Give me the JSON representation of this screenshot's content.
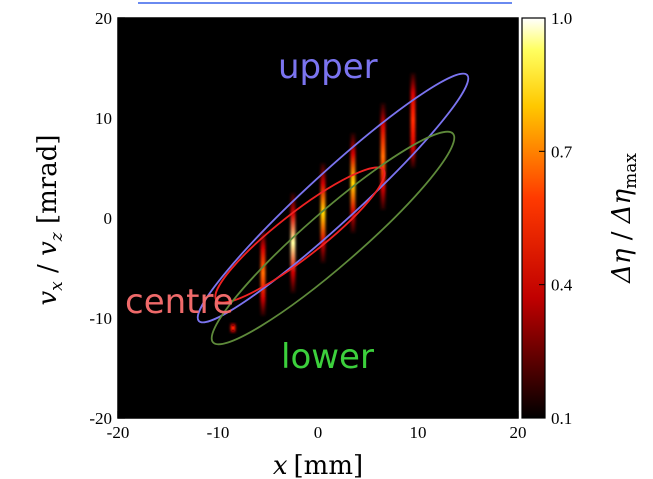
{
  "chart_data": {
    "type": "heatmap",
    "title": "",
    "xlabel": {
      "var": "x",
      "unit": "[mm]"
    },
    "ylabel": {
      "var1": "v",
      "sub1": "x",
      "sep": " / ",
      "var2": "v",
      "sub2": "z",
      "unit": " [mrad]"
    },
    "xlim": [
      -20,
      20
    ],
    "ylim": [
      -20,
      20
    ],
    "x_ticks": [
      -20,
      -10,
      0,
      10,
      20
    ],
    "y_ticks": [
      -20,
      -10,
      0,
      10,
      20
    ],
    "grid": false,
    "background_color": "#000000",
    "colorbar": {
      "label": {
        "num": "Δη",
        "sep": " / ",
        "den": "Δη",
        "den_sub": "max"
      },
      "range": [
        0.1,
        1.0
      ],
      "ticks": [
        0.1,
        0.4,
        0.7,
        1.0
      ],
      "tick_labels": [
        "0.1",
        "0.4",
        "0.7",
        "1.0"
      ],
      "colormap": "hot"
    },
    "stripes": [
      {
        "x": -8.5,
        "y_min": -11.5,
        "y_max": -10.5,
        "peak": 0.45
      },
      {
        "x": -5.5,
        "y_min": -9.8,
        "y_max": -1.2,
        "peak": 0.62
      },
      {
        "x": -2.5,
        "y_min": -7.5,
        "y_max": 2.5,
        "peak": 1.0
      },
      {
        "x": 0.5,
        "y_min": -4.5,
        "y_max": 5.5,
        "peak": 0.9
      },
      {
        "x": 3.5,
        "y_min": -1.5,
        "y_max": 8.5,
        "peak": 0.75
      },
      {
        "x": 6.5,
        "y_min": 0.8,
        "y_max": 11.5,
        "peak": 0.55
      },
      {
        "x": 9.5,
        "y_min": 5.0,
        "y_max": 14.5,
        "peak": 0.42
      }
    ],
    "ellipses": [
      {
        "name": "upper",
        "color": "#7b74f0",
        "cx": 1.5,
        "cy": 2.0,
        "semi_major": 18.2,
        "semi_minor": 2.5,
        "angle_deg": 42.5
      },
      {
        "name": "centre",
        "color": "#ef2222",
        "cx": -1.8,
        "cy": -1.7,
        "semi_major": 10.6,
        "semi_minor": 2.2,
        "angle_deg": 38
      },
      {
        "name": "lower",
        "color": "#5e8a3a",
        "cx": 1.5,
        "cy": -2.0,
        "semi_major": 15.9,
        "semi_minor": 2.7,
        "angle_deg": 41
      }
    ],
    "annotations": [
      {
        "text": "upper",
        "x": -4.0,
        "y": 14.0,
        "color": "#7b74f0"
      },
      {
        "text": "centre",
        "x": -19.3,
        "y": -9.5,
        "color": "#ef6a6a"
      },
      {
        "text": "lower",
        "x": -3.7,
        "y": -15.0,
        "color": "#3cd03c"
      }
    ]
  }
}
